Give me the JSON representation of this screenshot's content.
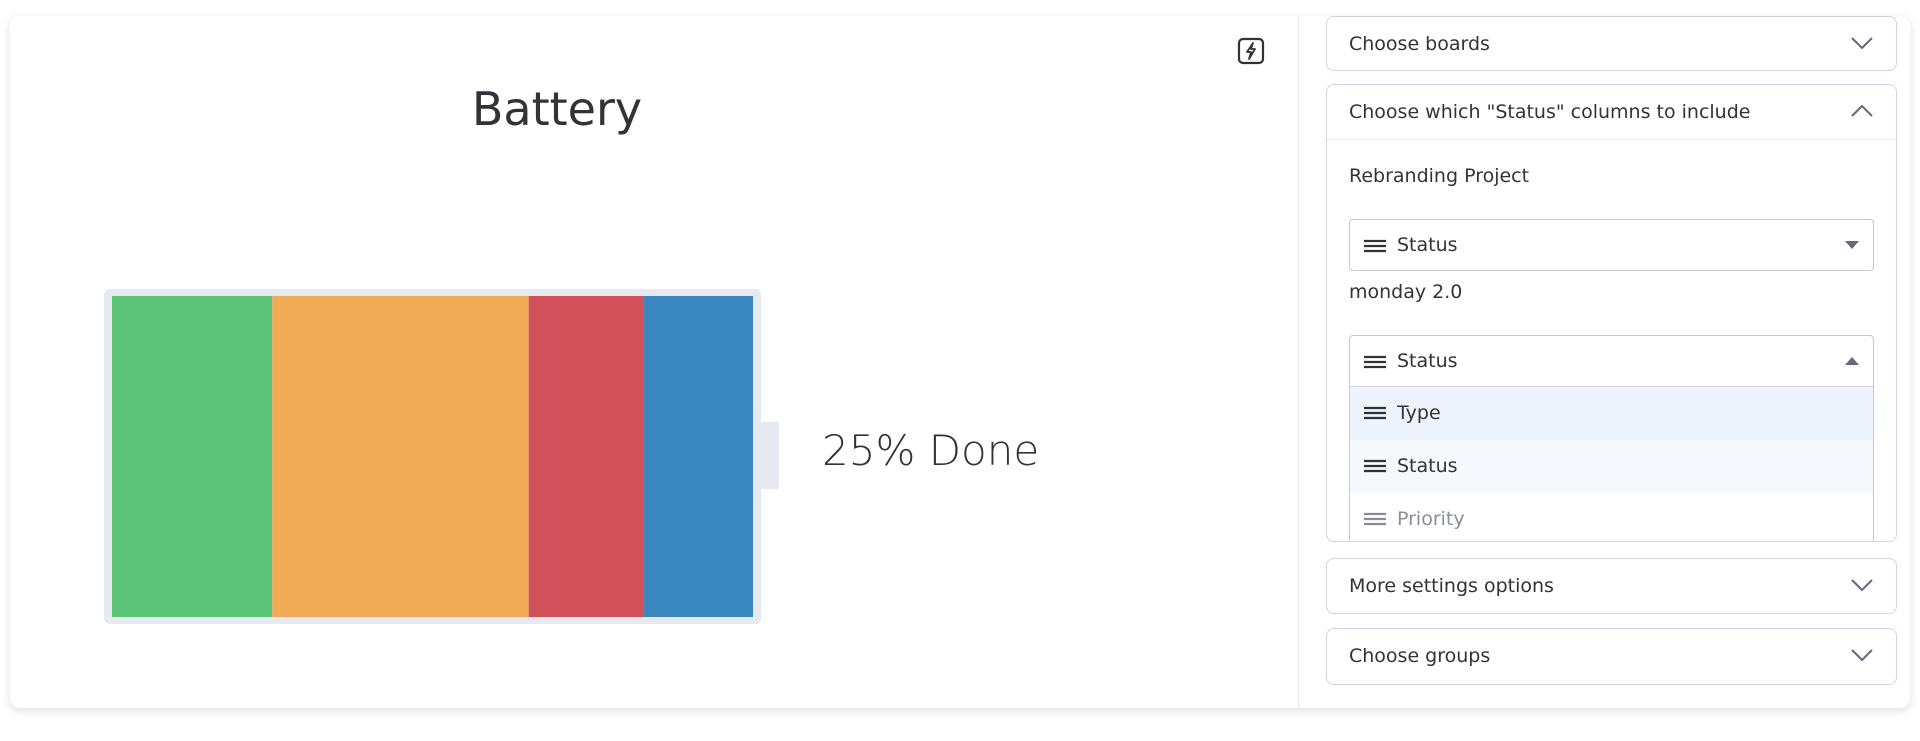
{
  "widget": {
    "title": "Battery",
    "done_label": "25% Done",
    "battery": {
      "segments": [
        {
          "color": "#5cc57a",
          "value": 25
        },
        {
          "color": "#f1ab56",
          "value": 40
        },
        {
          "color": "#d2525c",
          "value": 18
        },
        {
          "color": "#3a86bf",
          "value": 17
        }
      ]
    }
  },
  "settings": {
    "choose_boards": "Choose boards",
    "status_columns": {
      "header": "Choose which \"Status\" columns to include",
      "boards": [
        {
          "name": "Rebranding Project",
          "selected": "Status"
        },
        {
          "name": "monday 2.0",
          "selected": "Status"
        }
      ],
      "options": [
        "Type",
        "Status",
        "Priority"
      ]
    },
    "more_settings": "More settings options",
    "choose_groups": "Choose groups"
  }
}
